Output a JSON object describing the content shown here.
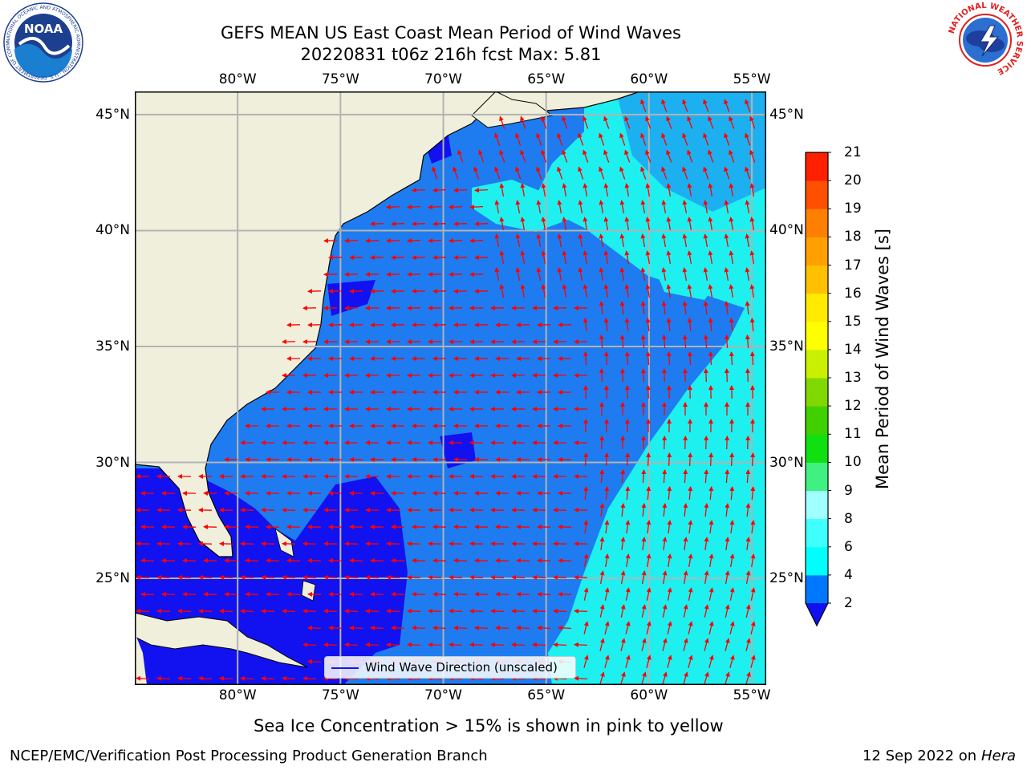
{
  "title": {
    "line1": "GEFS MEAN US East Coast Mean Period of Wind Waves",
    "line2": "20220831 t06z 216h fcst   Max: 5.81"
  },
  "map": {
    "lon_ticks": [
      "80°W",
      "75°W",
      "70°W",
      "65°W",
      "60°W",
      "55°W"
    ],
    "lat_ticks": [
      "45°N",
      "40°N",
      "35°N",
      "30°N",
      "25°N"
    ],
    "lon_range": [
      -85,
      -54.3
    ],
    "lat_range": [
      20.4,
      46
    ],
    "legend_label": "Wind Wave Direction (unscaled)",
    "colors": {
      "land": "#efefdc",
      "period_lt2": "#1212f0",
      "period_2_4": "#1e7cf0",
      "period_4_6": "#1ef0f0",
      "arrow": "#ff0000",
      "grid": "#b3b3b3"
    }
  },
  "colorbar": {
    "label": "Mean Period of Wind Waves [s]",
    "ticks": [
      "21",
      "20",
      "19",
      "18",
      "17",
      "16",
      "15",
      "14",
      "13",
      "12",
      "11",
      "10",
      "9",
      "8",
      "6",
      "4",
      "2"
    ],
    "levels": [
      2,
      4,
      6,
      8,
      9,
      10,
      11,
      12,
      13,
      14,
      15,
      16,
      17,
      18,
      19,
      20,
      21
    ],
    "colors": [
      "#0077ff",
      "#00ffff",
      "#40ffff",
      "#a0ffff",
      "#40f080",
      "#10e010",
      "#40d000",
      "#80d800",
      "#c8f000",
      "#ffff00",
      "#ffea00",
      "#ffc000",
      "#ffa000",
      "#ff8000",
      "#ff5000",
      "#ff2000"
    ],
    "under_color": "#1010f0"
  },
  "logos": {
    "left_text": "NOAA",
    "left_ring": "NATIONAL OCEANIC AND ATMOSPHERIC ADMINISTRATION · U.S. DEPARTMENT OF COMMERCE",
    "right_ring": "NATIONAL WEATHER SERVICE"
  },
  "footer": {
    "ice_note": "Sea Ice Concentration > 15% is shown in pink to yellow",
    "branch": "NCEP/EMC/Verification Post Processing Product Generation Branch",
    "date": "12 Sep 2022 on",
    "machine": "Hera"
  }
}
